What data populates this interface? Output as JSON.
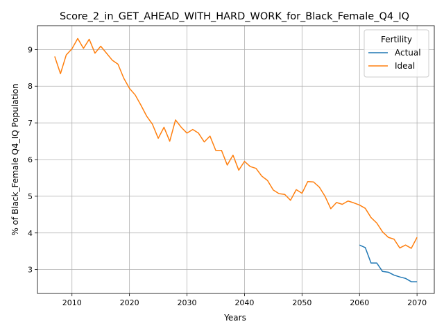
{
  "chart_data": {
    "type": "line",
    "title": "Score_2_in_GET_AHEAD_WITH_HARD_WORK_for_Black_Female_Q4_IQ",
    "xlabel": "Years",
    "ylabel": "% of Black_Female Q4_IQ Population",
    "xlim": [
      2004,
      2073
    ],
    "ylim": [
      2.35,
      9.65
    ],
    "x_ticks": [
      2010,
      2020,
      2030,
      2040,
      2050,
      2060,
      2070
    ],
    "y_ticks": [
      3,
      4,
      5,
      6,
      7,
      8,
      9
    ],
    "grid": true,
    "legend": {
      "title": "Fertility",
      "placement": "top-right"
    },
    "series": [
      {
        "name": "Actual",
        "color": "#1f77b4",
        "x": [
          2060,
          2061,
          2062,
          2063,
          2064,
          2065,
          2066,
          2067,
          2068,
          2069,
          2070
        ],
        "values": [
          3.67,
          3.6,
          3.18,
          3.18,
          2.95,
          2.93,
          2.85,
          2.8,
          2.76,
          2.67,
          2.67
        ]
      },
      {
        "name": "Ideal",
        "color": "#ff7f0e",
        "x": [
          2007,
          2008,
          2009,
          2010,
          2011,
          2012,
          2013,
          2014,
          2015,
          2016,
          2017,
          2018,
          2019,
          2020,
          2021,
          2022,
          2023,
          2024,
          2025,
          2026,
          2027,
          2028,
          2029,
          2030,
          2031,
          2032,
          2033,
          2034,
          2035,
          2036,
          2037,
          2038,
          2039,
          2040,
          2041,
          2042,
          2043,
          2044,
          2045,
          2046,
          2047,
          2048,
          2049,
          2050,
          2051,
          2052,
          2053,
          2054,
          2055,
          2056,
          2057,
          2058,
          2059,
          2060,
          2061,
          2062,
          2063,
          2064,
          2065,
          2066,
          2067,
          2068,
          2069,
          2070
        ],
        "values": [
          8.81,
          8.34,
          8.85,
          9.02,
          9.3,
          9.03,
          9.28,
          8.9,
          9.09,
          8.9,
          8.71,
          8.6,
          8.22,
          7.94,
          7.76,
          7.48,
          7.18,
          6.96,
          6.58,
          6.88,
          6.5,
          7.08,
          6.88,
          6.72,
          6.82,
          6.72,
          6.48,
          6.64,
          6.25,
          6.25,
          5.85,
          6.12,
          5.71,
          5.95,
          5.81,
          5.76,
          5.55,
          5.43,
          5.17,
          5.07,
          5.05,
          4.89,
          5.18,
          5.08,
          5.4,
          5.39,
          5.25,
          5.0,
          4.66,
          4.83,
          4.78,
          4.87,
          4.82,
          4.76,
          4.67,
          4.42,
          4.27,
          4.03,
          3.88,
          3.83,
          3.59,
          3.67,
          3.58,
          3.88
        ]
      }
    ]
  }
}
